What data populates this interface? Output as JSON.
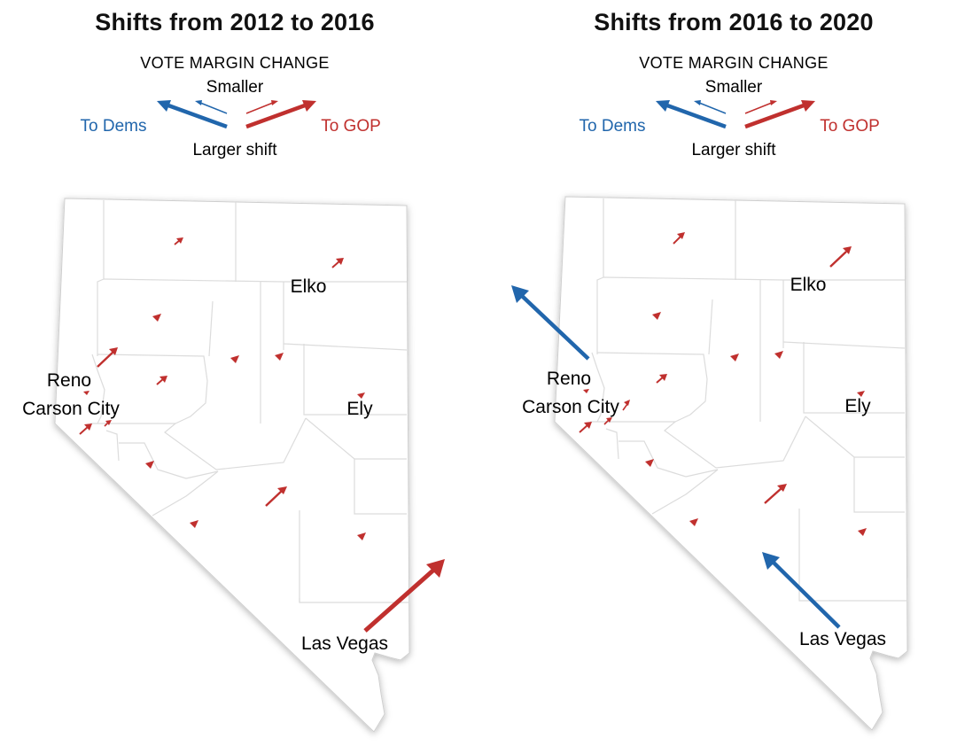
{
  "colors": {
    "dem": "#2166ac",
    "gop": "#c0302e",
    "border": "#d9d9d9",
    "text": "#111111"
  },
  "legend": {
    "heading": "VOTE MARGIN CHANGE",
    "smaller": "Smaller",
    "larger": "Larger shift",
    "to_dems": "To Dems",
    "to_gop": "To GOP"
  },
  "maps": [
    {
      "title": "Shifts from 2012 to 2016",
      "cities": [
        "Elko",
        "Reno",
        "Carson City",
        "Ely",
        "Las Vegas"
      ]
    },
    {
      "title": "Shifts from 2016 to 2020",
      "cities": [
        "Elko",
        "Reno",
        "Carson City",
        "Ely",
        "Las Vegas"
      ]
    }
  ]
}
